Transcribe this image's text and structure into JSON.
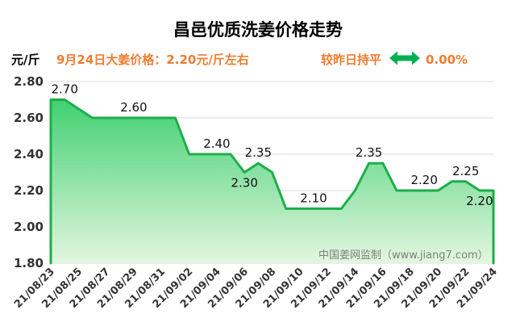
{
  "header": {
    "price_note": "9月24日大姜价格：2.20元/斤左右",
    "change_label": "较昨日持平",
    "change_icon": "double-arrow-icon",
    "change_pct": "0.00%",
    "accent_color": "#ED7D31",
    "icon_color": "#00B050"
  },
  "watermark": "中国姜网监制（www.jiang7.com）",
  "chart_data": {
    "type": "area",
    "title": "昌邑优质洗姜价格走势",
    "ylabel": "元/斤",
    "ylim": [
      1.8,
      2.8
    ],
    "yticks": [
      "1.80",
      "2.00",
      "2.20",
      "2.40",
      "2.60",
      "2.80"
    ],
    "xticks": [
      "21/08/23",
      "21/08/25",
      "21/08/27",
      "21/08/29",
      "21/08/31",
      "21/09/02",
      "21/09/04",
      "21/09/06",
      "21/09/08",
      "21/09/10",
      "21/09/12",
      "21/09/14",
      "21/09/16",
      "21/09/18",
      "21/09/20",
      "21/09/22",
      "21/09/24"
    ],
    "grid": true,
    "points": [
      {
        "x": "21/08/23",
        "y": 2.7
      },
      {
        "x": "21/08/24",
        "y": 2.7
      },
      {
        "x": "21/08/25",
        "y": 2.65
      },
      {
        "x": "21/08/26",
        "y": 2.6
      },
      {
        "x": "21/08/27",
        "y": 2.6
      },
      {
        "x": "21/08/28",
        "y": 2.6
      },
      {
        "x": "21/08/29",
        "y": 2.6
      },
      {
        "x": "21/08/30",
        "y": 2.6
      },
      {
        "x": "21/08/31",
        "y": 2.6
      },
      {
        "x": "21/09/01",
        "y": 2.6
      },
      {
        "x": "21/09/02",
        "y": 2.4
      },
      {
        "x": "21/09/03",
        "y": 2.4
      },
      {
        "x": "21/09/04",
        "y": 2.4
      },
      {
        "x": "21/09/05",
        "y": 2.4
      },
      {
        "x": "21/09/06",
        "y": 2.3
      },
      {
        "x": "21/09/07",
        "y": 2.35
      },
      {
        "x": "21/09/08",
        "y": 2.3
      },
      {
        "x": "21/09/09",
        "y": 2.1
      },
      {
        "x": "21/09/10",
        "y": 2.1
      },
      {
        "x": "21/09/11",
        "y": 2.1
      },
      {
        "x": "21/09/12",
        "y": 2.1
      },
      {
        "x": "21/09/13",
        "y": 2.1
      },
      {
        "x": "21/09/14",
        "y": 2.2
      },
      {
        "x": "21/09/15",
        "y": 2.35
      },
      {
        "x": "21/09/16",
        "y": 2.35
      },
      {
        "x": "21/09/17",
        "y": 2.2
      },
      {
        "x": "21/09/18",
        "y": 2.2
      },
      {
        "x": "21/09/19",
        "y": 2.2
      },
      {
        "x": "21/09/20",
        "y": 2.2
      },
      {
        "x": "21/09/21",
        "y": 2.25
      },
      {
        "x": "21/09/22",
        "y": 2.25
      },
      {
        "x": "21/09/23",
        "y": 2.2
      },
      {
        "x": "21/09/24",
        "y": 2.2
      }
    ],
    "data_labels": [
      {
        "x": "21/08/24",
        "text": "2.70",
        "placement": "above"
      },
      {
        "x": "21/08/29",
        "text": "2.60",
        "placement": "above"
      },
      {
        "x": "21/09/04",
        "text": "2.40",
        "placement": "above"
      },
      {
        "x": "21/09/07",
        "text": "2.35",
        "placement": "above"
      },
      {
        "x": "21/09/06",
        "text": "2.30",
        "placement": "below"
      },
      {
        "x": "21/09/11",
        "text": "2.10",
        "placement": "above"
      },
      {
        "x": "21/09/15",
        "text": "2.35",
        "placement": "above"
      },
      {
        "x": "21/09/19",
        "text": "2.20",
        "placement": "above"
      },
      {
        "x": "21/09/22",
        "text": "2.25",
        "placement": "above"
      },
      {
        "x": "21/09/23",
        "text": "2.20",
        "placement": "below"
      }
    ],
    "colors": {
      "line": "#1DAE4A",
      "fill_top": "#2FCC66",
      "fill_bottom": "#E3F6DF",
      "grid": "#D9D9D9"
    }
  }
}
